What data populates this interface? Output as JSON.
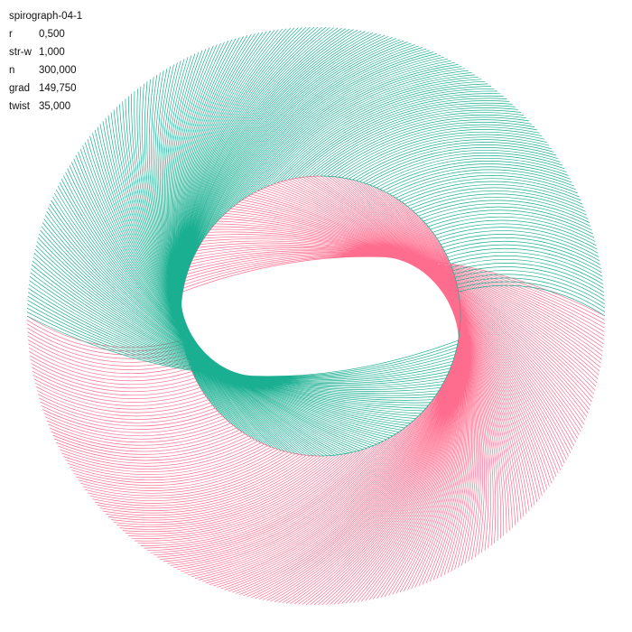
{
  "title": "spirograph-04-1",
  "params": [
    {
      "key": "r",
      "value": "0,500"
    },
    {
      "key": "str-w",
      "value": "1,000"
    },
    {
      "key": "n",
      "value": "300,000"
    },
    {
      "key": "grad",
      "value": "149,750"
    },
    {
      "key": "twist",
      "value": "35,000"
    }
  ],
  "colors": {
    "background": "#ffffff",
    "teal": "#1aaf91",
    "pink": "#ff6d8e",
    "text": "#111111"
  }
}
